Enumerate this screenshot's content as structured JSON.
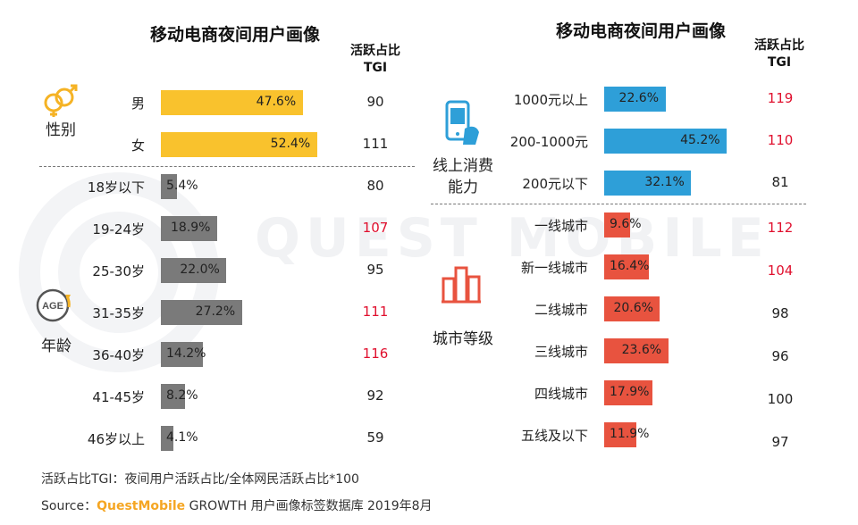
{
  "colors": {
    "yellow": "#F9C22D",
    "gray": "#7A7A7A",
    "blue": "#2E9FD8",
    "red": "#E8533F",
    "tgi_highlight": "#E0102E",
    "tgi_normal": "#222222",
    "brand": "#F5A623"
  },
  "watermark": "QUEST MOBILE",
  "chart_data": [
    {
      "type": "bar",
      "orientation": "horizontal",
      "title": "移动电商夜间用户画像",
      "tgi_header": [
        "活跃占比",
        "TGI"
      ],
      "xlim": [
        0,
        60
      ],
      "groups": [
        {
          "label": [
            "性别"
          ],
          "icon": "gender-icon",
          "color": "#F9C22D",
          "items": [
            {
              "category": "男",
              "value": 47.6,
              "label": "47.6%",
              "tgi": "90",
              "highlight": false
            },
            {
              "category": "女",
              "value": 52.4,
              "label": "52.4%",
              "tgi": "111",
              "highlight": false
            }
          ]
        },
        {
          "label": [
            "年龄"
          ],
          "icon": "age-icon",
          "icon_text": "AGE",
          "color": "#7A7A7A",
          "items": [
            {
              "category": "18岁以下",
              "value": 5.4,
              "label": "5.4%",
              "tgi": "80",
              "highlight": false
            },
            {
              "category": "19-24岁",
              "value": 18.9,
              "label": "18.9%",
              "tgi": "107",
              "highlight": true
            },
            {
              "category": "25-30岁",
              "value": 22.0,
              "label": "22.0%",
              "tgi": "95",
              "highlight": false
            },
            {
              "category": "31-35岁",
              "value": 27.2,
              "label": "27.2%",
              "tgi": "111",
              "highlight": true
            },
            {
              "category": "36-40岁",
              "value": 14.2,
              "label": "14.2%",
              "tgi": "116",
              "highlight": true
            },
            {
              "category": "41-45岁",
              "value": 8.2,
              "label": "8.2%",
              "tgi": "92",
              "highlight": false
            },
            {
              "category": "46岁以上",
              "value": 4.1,
              "label": "4.1%",
              "tgi": "59",
              "highlight": false
            }
          ]
        }
      ]
    },
    {
      "type": "bar",
      "orientation": "horizontal",
      "title": "移动电商夜间用户画像",
      "tgi_header": [
        "活跃占比",
        "TGI"
      ],
      "xlim": [
        0,
        60
      ],
      "groups": [
        {
          "label": [
            "线上消费",
            "能力"
          ],
          "icon": "phone-payment-icon",
          "color": "#2E9FD8",
          "items": [
            {
              "category": "1000元以上",
              "value": 22.6,
              "label": "22.6%",
              "tgi": "119",
              "highlight": true
            },
            {
              "category": "200-1000元",
              "value": 45.2,
              "label": "45.2%",
              "tgi": "110",
              "highlight": true
            },
            {
              "category": "200元以下",
              "value": 32.1,
              "label": "32.1%",
              "tgi": "81",
              "highlight": false
            }
          ]
        },
        {
          "label": [
            "城市等级"
          ],
          "icon": "city-buildings-icon",
          "color": "#E8533F",
          "items": [
            {
              "category": "一线城市",
              "value": 9.6,
              "label": "9.6%",
              "tgi": "112",
              "highlight": true
            },
            {
              "category": "新一线城市",
              "value": 16.4,
              "label": "16.4%",
              "tgi": "104",
              "highlight": true
            },
            {
              "category": "二线城市",
              "value": 20.6,
              "label": "20.6%",
              "tgi": "98",
              "highlight": false
            },
            {
              "category": "三线城市",
              "value": 23.6,
              "label": "23.6%",
              "tgi": "96",
              "highlight": false
            },
            {
              "category": "四线城市",
              "value": 17.9,
              "label": "17.9%",
              "tgi": "100",
              "highlight": false
            },
            {
              "category": "五线及以下",
              "value": 11.9,
              "label": "11.9%",
              "tgi": "97",
              "highlight": false
            }
          ]
        }
      ]
    }
  ],
  "footnote": {
    "definition": "活跃占比TGI：夜间用户活跃占比/全体网民活跃占比*100",
    "source_prefix": "Source：",
    "source_brand": "QuestMobile",
    "source_rest": " GROWTH 用户画像标签数据库 2019年8月"
  }
}
